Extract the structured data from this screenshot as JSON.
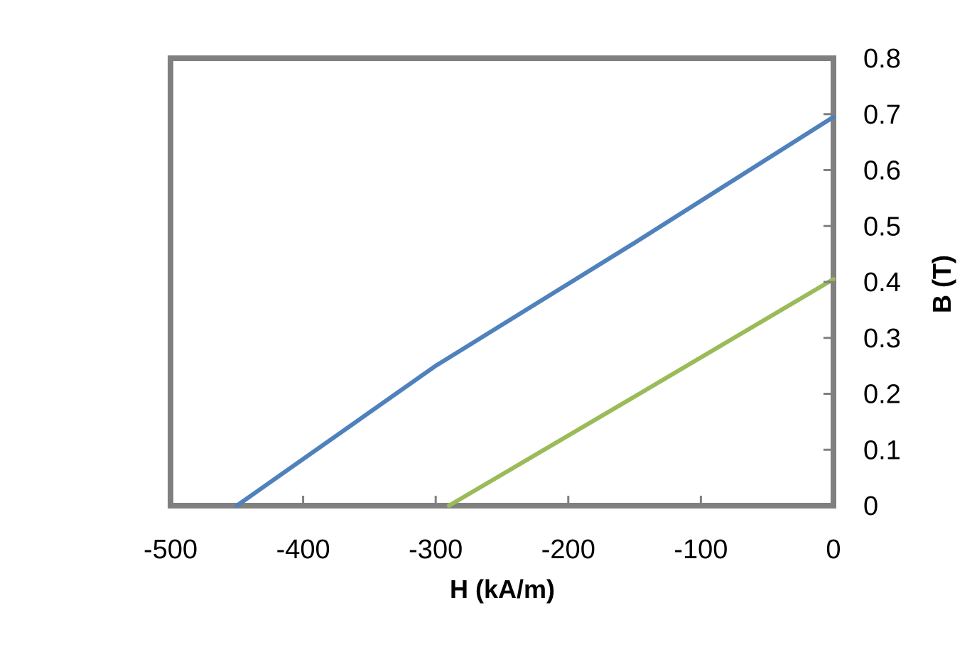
{
  "chart_data": {
    "type": "line",
    "title": "",
    "xlabel": "H (kA/m)",
    "ylabel": "B (T)",
    "xlim": [
      -500,
      0
    ],
    "ylim": [
      0,
      0.8
    ],
    "x_ticks": [
      -500,
      -400,
      -300,
      -200,
      -100,
      0
    ],
    "x_tick_labels": [
      "-500",
      "-400",
      "-300",
      "-200",
      "-100",
      "0"
    ],
    "y_ticks": [
      0,
      0.1,
      0.2,
      0.3,
      0.4,
      0.5,
      0.6,
      0.7,
      0.8
    ],
    "y_tick_labels": [
      "0",
      "0.1",
      "0.2",
      "0.3",
      "0.4",
      "0.5",
      "0.6",
      "0.7",
      "0.8"
    ],
    "y_axis_side": "right",
    "grid": false,
    "legend": "none",
    "series": [
      {
        "color": "#4f81bd",
        "x": [
          -450,
          -300,
          -150,
          0
        ],
        "y": [
          0,
          0.25,
          0.47,
          0.695
        ]
      },
      {
        "color": "#9bbb59",
        "x": [
          -290,
          -150,
          0
        ],
        "y": [
          0,
          0.195,
          0.405
        ]
      }
    ],
    "frame_color": "#808080"
  }
}
